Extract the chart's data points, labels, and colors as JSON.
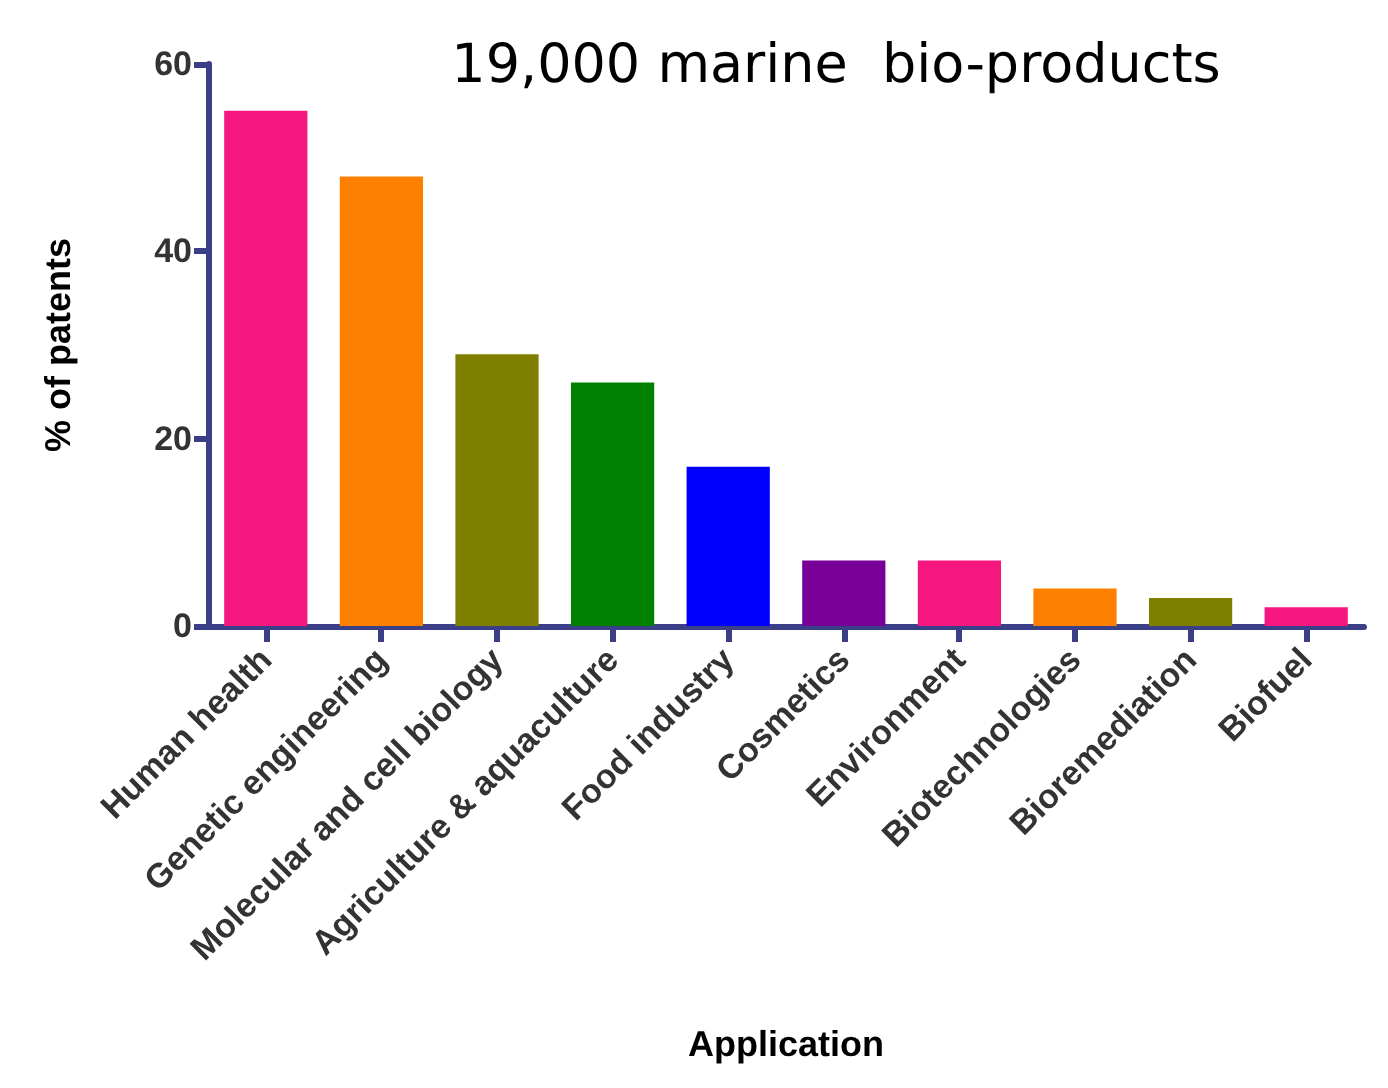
{
  "chart_data": {
    "type": "bar",
    "title": "19,000 marine  bio-products",
    "xlabel": "Application",
    "ylabel": "% of patents",
    "categories": [
      "Human health",
      "Genetic engineering",
      "Molecular and cell biology",
      "Agriculture & aquaculture",
      "Food industry",
      "Cosmetics",
      "Environment",
      "Biotechnologies",
      "Bioremediation",
      "Biofuel"
    ],
    "values": [
      55,
      48,
      29,
      26,
      17,
      7,
      7,
      4,
      3,
      2
    ],
    "colors": [
      "#f5167f",
      "#ff8000",
      "#808000",
      "#008000",
      "#0000ff",
      "#780099",
      "#f5167f",
      "#ff8000",
      "#808000",
      "#f5167f"
    ],
    "ylim": [
      0,
      60
    ],
    "yticks": [
      0,
      20,
      40,
      60
    ],
    "grid": false
  }
}
